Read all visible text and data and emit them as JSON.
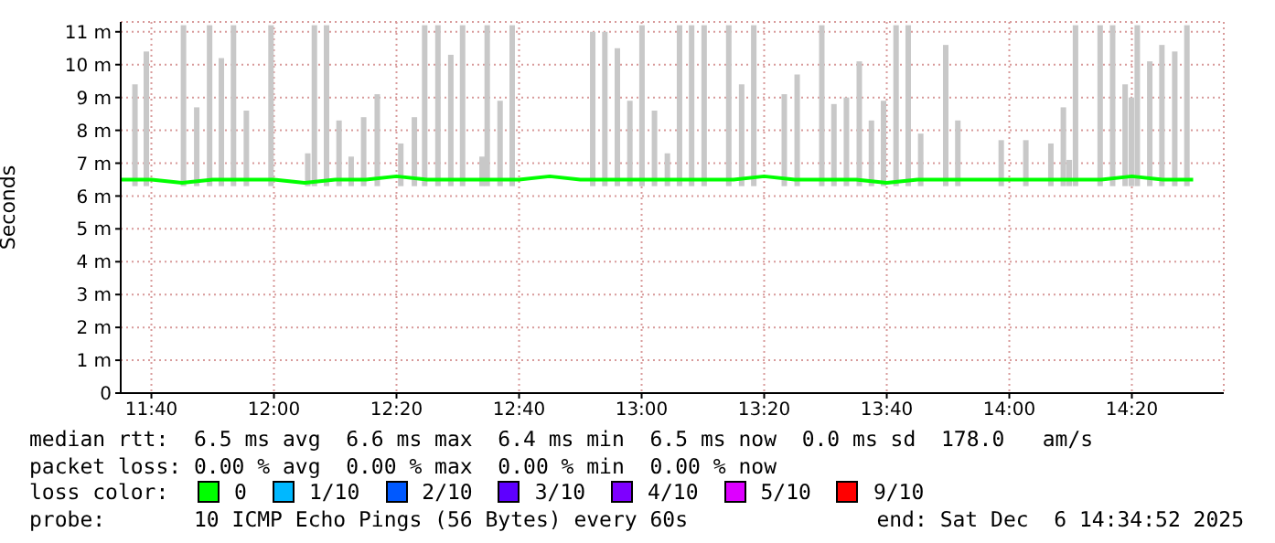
{
  "chart_data": {
    "type": "line",
    "ylabel": "Seconds",
    "xlim": [
      11.5833,
      14.5833
    ],
    "ylim": [
      0,
      11.3
    ],
    "xticks": [
      {
        "value": 11.6667,
        "label": "11:40"
      },
      {
        "value": 12,
        "label": "12:00"
      },
      {
        "value": 12.3333,
        "label": "12:20"
      },
      {
        "value": 12.6667,
        "label": "12:40"
      },
      {
        "value": 13,
        "label": "13:00"
      },
      {
        "value": 13.3333,
        "label": "13:20"
      },
      {
        "value": 13.6667,
        "label": "13:40"
      },
      {
        "value": 14,
        "label": "14:00"
      },
      {
        "value": 14.3333,
        "label": "14:20"
      }
    ],
    "yticks": [
      0,
      {
        "value": 1,
        "label": "1 m"
      },
      {
        "value": 2,
        "label": "2 m"
      },
      {
        "value": 3,
        "label": "3 m"
      },
      {
        "value": 4,
        "label": "4 m"
      },
      {
        "value": 5,
        "label": "5 m"
      },
      {
        "value": 6,
        "label": "6 m"
      },
      {
        "value": 7,
        "label": "7 m"
      },
      {
        "value": 8,
        "label": "8 m"
      },
      {
        "value": 9,
        "label": "9 m"
      },
      {
        "value": 10,
        "label": "10 m"
      },
      {
        "value": 11,
        "label": "11 m"
      }
    ],
    "grid": true,
    "legend": "bottom",
    "legend_title": "loss color:",
    "marker": "none",
    "line_style": "solid",
    "series": [
      {
        "type": "bar",
        "color": "#c8c8c8",
        "x": [
          11.622,
          11.653,
          11.754,
          11.79,
          11.825,
          11.857,
          11.89,
          11.925,
          11.992,
          12.092,
          12.11,
          12.143,
          12.177,
          12.21,
          12.244,
          12.281,
          12.345,
          12.382,
          12.41,
          12.446,
          12.481,
          12.513,
          12.566,
          12.58,
          12.615,
          12.648,
          12.867,
          12.9,
          12.934,
          12.968,
          13.001,
          13.035,
          13.07,
          13.103,
          13.136,
          13.17,
          13.237,
          13.272,
          13.305,
          13.388,
          13.423,
          13.49,
          13.523,
          13.557,
          13.592,
          13.625,
          13.658,
          13.692,
          13.725,
          13.759,
          13.827,
          13.86,
          13.978,
          14.045,
          14.113,
          14.147,
          14.163,
          14.18,
          14.247,
          14.281,
          14.315,
          14.332,
          14.348,
          14.382,
          14.415,
          14.45,
          14.483
        ],
        "base": [
          6.3,
          6.3,
          6.3,
          6.3,
          6.3,
          6.3,
          6.3,
          6.3,
          6.3,
          6.3,
          6.3,
          6.3,
          6.3,
          6.3,
          6.3,
          6.3,
          6.3,
          6.3,
          6.3,
          6.3,
          6.3,
          6.3,
          6.3,
          6.3,
          6.3,
          6.3,
          6.3,
          6.3,
          6.3,
          6.3,
          6.3,
          6.3,
          6.3,
          6.3,
          6.3,
          6.3,
          6.3,
          6.3,
          6.3,
          6.3,
          6.3,
          6.3,
          6.3,
          6.3,
          6.3,
          6.3,
          6.3,
          6.3,
          6.3,
          6.3,
          6.3,
          6.3,
          6.3,
          6.3,
          6.3,
          6.3,
          6.3,
          6.3,
          6.3,
          6.3,
          6.3,
          6.3,
          6.3,
          6.3,
          6.3,
          6.3,
          6.3
        ],
        "values": [
          3.1,
          4.1,
          4.9,
          2.4,
          4.9,
          3.9,
          4.9,
          2.3,
          4.9,
          1.0,
          4.9,
          4.9,
          2.0,
          0.9,
          2.1,
          2.8,
          1.3,
          2.1,
          4.9,
          4.9,
          4.0,
          4.9,
          0.9,
          4.9,
          2.6,
          4.9,
          4.7,
          4.7,
          4.2,
          2.6,
          4.9,
          2.3,
          1.0,
          4.9,
          4.9,
          4.9,
          4.9,
          3.1,
          4.9,
          2.8,
          3.4,
          4.9,
          2.5,
          2.7,
          3.8,
          2.0,
          2.6,
          4.9,
          4.9,
          1.6,
          4.3,
          2.0,
          1.4,
          1.4,
          1.3,
          2.4,
          0.8,
          4.9,
          4.9,
          4.9,
          3.1,
          2.7,
          4.9,
          3.8,
          4.3,
          4.1,
          4.9
        ]
      },
      {
        "name": "0",
        "color": "#00ff00",
        "x": [
          11.5833,
          11.6667,
          11.75,
          11.8333,
          11.9167,
          12,
          12.0833,
          12.1667,
          12.25,
          12.3333,
          12.4167,
          12.5,
          12.5833,
          12.6667,
          12.75,
          12.8333,
          12.9167,
          13,
          13.0833,
          13.1667,
          13.25,
          13.3333,
          13.4167,
          13.5,
          13.5833,
          13.6667,
          13.75,
          13.8333,
          13.9167,
          14,
          14.0833,
          14.1667,
          14.25,
          14.3333,
          14.4167,
          14.5
        ],
        "values": [
          6.5,
          6.5,
          6.4,
          6.5,
          6.5,
          6.5,
          6.4,
          6.5,
          6.5,
          6.6,
          6.5,
          6.5,
          6.5,
          6.5,
          6.6,
          6.5,
          6.5,
          6.5,
          6.5,
          6.5,
          6.5,
          6.6,
          6.5,
          6.5,
          6.5,
          6.4,
          6.5,
          6.5,
          6.5,
          6.5,
          6.5,
          6.5,
          6.5,
          6.6,
          6.5,
          6.5
        ]
      },
      {
        "name": "1/10",
        "color": "#00b8ff"
      },
      {
        "name": "2/10",
        "color": "#0059ff"
      },
      {
        "name": "3/10",
        "color": "#5e00ff"
      },
      {
        "name": "4/10",
        "color": "#7e00ff"
      },
      {
        "name": "5/10",
        "color": "#dd00ff"
      },
      {
        "name": "9/10",
        "color": "#ff0000"
      }
    ],
    "annotations": [
      "median rtt:  6.5 ms avg  6.6 ms max  6.4 ms min  6.5 ms now  0.0 ms sd  178.0   am/s",
      "packet loss: 0.00 % avg  0.00 % max  0.00 % min  0.00 % now",
      "probe:       10 ICMP Echo Pings (56 Bytes) every 60s",
      "end: Sat Dec  6 14:34:52 2025"
    ]
  }
}
